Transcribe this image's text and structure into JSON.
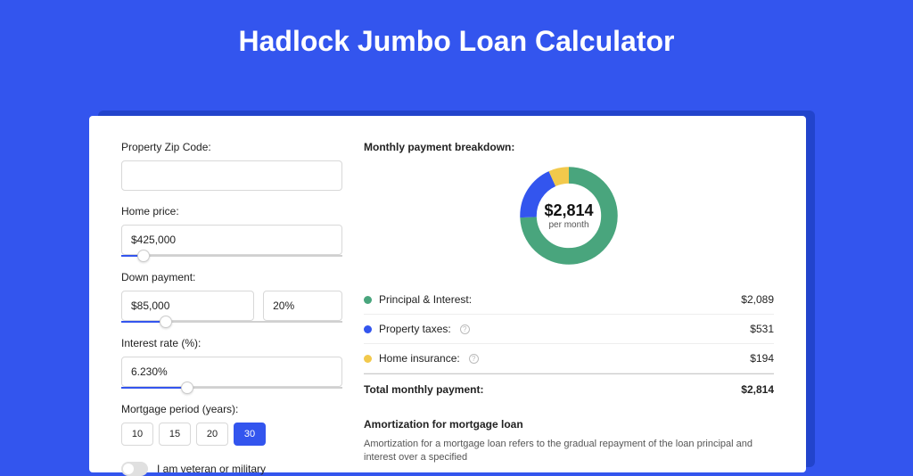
{
  "page": {
    "title": "Hadlock Jumbo Loan Calculator",
    "background_color": "#3355ee",
    "card_background": "#ffffff",
    "text_color": "#222222",
    "accent_color": "#3355ee"
  },
  "form": {
    "zip": {
      "label": "Property Zip Code:",
      "value": ""
    },
    "home_price": {
      "label": "Home price:",
      "value": "$425,000",
      "slider_percent": 10
    },
    "down_payment": {
      "label": "Down payment:",
      "amount": "$85,000",
      "percent": "20%",
      "slider_percent": 20
    },
    "interest_rate": {
      "label": "Interest rate (%):",
      "value": "6.230%",
      "slider_percent": 30
    },
    "mortgage_period": {
      "label": "Mortgage period (years):",
      "options": [
        "10",
        "15",
        "20",
        "30"
      ],
      "selected": "30"
    },
    "veteran": {
      "label": "I am veteran or military",
      "checked": false
    }
  },
  "breakdown": {
    "title": "Monthly payment breakdown:",
    "donut": {
      "type": "donut",
      "amount": "$2,814",
      "sub": "per month",
      "segments": [
        {
          "label": "Principal & Interest",
          "value": 2089,
          "color": "#49a57d"
        },
        {
          "label": "Property taxes",
          "value": 531,
          "color": "#3355ee"
        },
        {
          "label": "Home insurance",
          "value": 194,
          "color": "#f2c94c"
        }
      ],
      "thickness": 18,
      "background": "#ffffff"
    },
    "rows": [
      {
        "dot_color": "#49a57d",
        "label": "Principal & Interest:",
        "info": false,
        "value": "$2,089"
      },
      {
        "dot_color": "#3355ee",
        "label": "Property taxes:",
        "info": true,
        "value": "$531"
      },
      {
        "dot_color": "#f2c94c",
        "label": "Home insurance:",
        "info": true,
        "value": "$194"
      }
    ],
    "total": {
      "label": "Total monthly payment:",
      "value": "$2,814"
    }
  },
  "amortization": {
    "title": "Amortization for mortgage loan",
    "text": "Amortization for a mortgage loan refers to the gradual repayment of the loan principal and interest over a specified"
  }
}
